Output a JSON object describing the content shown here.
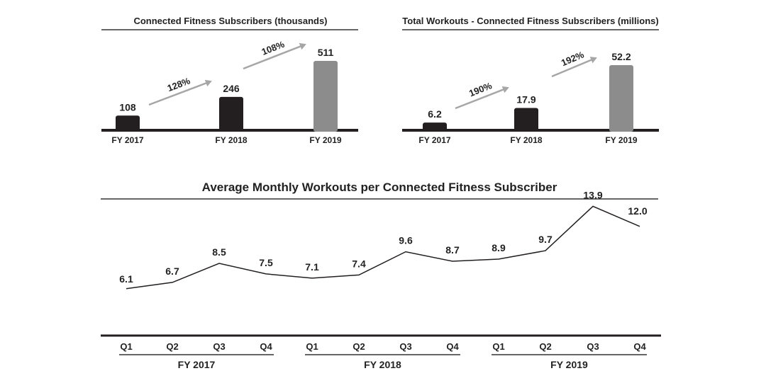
{
  "chart_data": [
    {
      "type": "bar",
      "title": "Connected Fitness Subscribers (thousands)",
      "categories": [
        "FY 2017",
        "FY 2018",
        "FY 2019"
      ],
      "values": [
        108,
        246,
        511
      ],
      "value_labels": [
        "108",
        "246",
        "511"
      ],
      "growth_labels": [
        "128%",
        "108%"
      ],
      "ylim": [
        0,
        511
      ],
      "colors": [
        "#231f20",
        "#231f20",
        "#8c8c8c"
      ]
    },
    {
      "type": "bar",
      "title": "Total Workouts - Connected Fitness Subscribers (millions)",
      "categories": [
        "FY 2017",
        "FY 2018",
        "FY 2019"
      ],
      "values": [
        6.2,
        17.9,
        52.2
      ],
      "value_labels": [
        "6.2",
        "17.9",
        "52.2"
      ],
      "growth_labels": [
        "190%",
        "192%"
      ],
      "ylim": [
        0,
        52.2
      ],
      "colors": [
        "#231f20",
        "#231f20",
        "#8c8c8c"
      ]
    },
    {
      "type": "line",
      "title": "Average Monthly Workouts per Connected Fitness Subscriber",
      "categories": [
        "Q1",
        "Q2",
        "Q3",
        "Q4",
        "Q1",
        "Q2",
        "Q3",
        "Q4",
        "Q1",
        "Q2",
        "Q3",
        "Q4"
      ],
      "values": [
        6.1,
        6.7,
        8.5,
        7.5,
        7.1,
        7.4,
        9.6,
        8.7,
        8.9,
        9.7,
        13.9,
        12.0
      ],
      "value_labels": [
        "6.1",
        "6.7",
        "8.5",
        "7.5",
        "7.1",
        "7.4",
        "9.6",
        "8.7",
        "8.9",
        "9.7",
        "13.9",
        "12.0"
      ],
      "groups": [
        "FY 2017",
        "FY 2018",
        "FY 2019"
      ],
      "ylim": [
        0,
        16
      ]
    }
  ],
  "colors": {
    "dark": "#231f20",
    "gray": "#8c8c8c",
    "arrow": "#a6a6a6",
    "text": "#222222",
    "rule": "#333333"
  }
}
